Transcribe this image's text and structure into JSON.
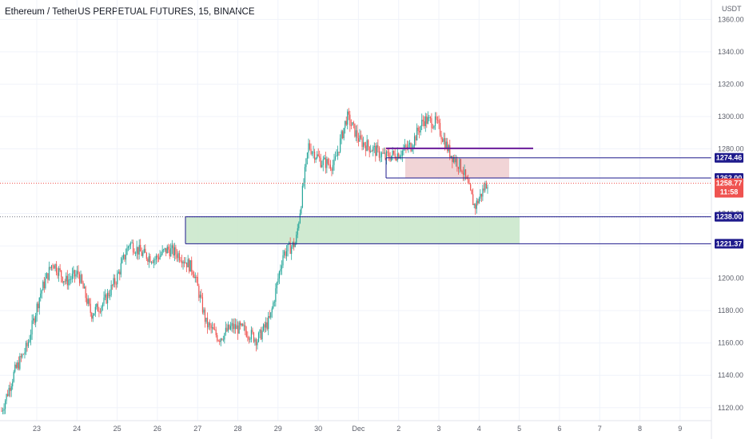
{
  "header": {
    "title": "Ethereum / TetherUS PERPETUAL FUTURES, 15, BINANCE"
  },
  "axis": {
    "currency": "USDT"
  },
  "chart_data": {
    "type": "candlestick",
    "title": "Ethereum / TetherUS PERPETUAL FUTURES, 15, BINANCE",
    "yaxis_label": "USDT",
    "ylim": [
      1112,
      1372
    ],
    "grid": true,
    "x_ticks": [
      "23",
      "24",
      "25",
      "26",
      "27",
      "28",
      "29",
      "30",
      "Dec",
      "2",
      "3",
      "4",
      "5",
      "6",
      "7",
      "8",
      "9"
    ],
    "y_ticks": [
      1120,
      1140,
      1160,
      1180,
      1200,
      1220,
      1240,
      1260,
      1280,
      1300,
      1320,
      1340,
      1360
    ],
    "price_path": [
      [
        "23",
        1118
      ],
      [
        "23.3",
        1142
      ],
      [
        "23.6",
        1158
      ],
      [
        "24",
        1190
      ],
      [
        "24.3",
        1210
      ],
      [
        "24.6",
        1198
      ],
      [
        "25",
        1203
      ],
      [
        "25.3",
        1178
      ],
      [
        "25.6",
        1185
      ],
      [
        "26",
        1200
      ],
      [
        "26.3",
        1222
      ],
      [
        "26.6",
        1215
      ],
      [
        "27",
        1212
      ],
      [
        "27.4",
        1218
      ],
      [
        "27.8",
        1214
      ],
      [
        "28",
        1205
      ],
      [
        "28.15",
        1172
      ],
      [
        "28.3",
        1163
      ],
      [
        "28.6",
        1170
      ],
      [
        "29",
        1168
      ],
      [
        "29.2",
        1162
      ],
      [
        "29.5",
        1175
      ],
      [
        "29.8",
        1215
      ],
      [
        "30",
        1222
      ],
      [
        "30.15",
        1282
      ],
      [
        "30.5",
        1272
      ],
      [
        "30.8",
        1270
      ],
      [
        "Dec",
        1300
      ],
      [
        "Dec.3",
        1285
      ],
      [
        "Dec.6",
        1280
      ],
      [
        "1.8",
        1275
      ],
      [
        "2",
        1277
      ],
      [
        "2.5",
        1282
      ],
      [
        "2.8",
        1298
      ],
      [
        "3.1",
        1296
      ],
      [
        "3.4",
        1278
      ],
      [
        "3.7",
        1268
      ],
      [
        "4",
        1244
      ],
      [
        "4.2",
        1260
      ]
    ],
    "last_price": "1258.77",
    "countdown": "11:58",
    "levels": [
      {
        "label": "1274.46",
        "value": 1274.46
      },
      {
        "label": "1262.00",
        "value": 1262.0
      },
      {
        "label": "1238.00",
        "value": 1238.0
      },
      {
        "label": "1221.37",
        "value": 1221.37
      }
    ],
    "zones": [
      {
        "kind": "demand",
        "from": 1221.37,
        "to": 1238.0
      },
      {
        "kind": "supply",
        "from": 1262.0,
        "to": 1274.46
      }
    ],
    "colors": {
      "up": "#26a69a",
      "down": "#ef5350",
      "level": "#1e1a8c",
      "demand_zone": "#c8e6c9",
      "supply_zone": "#f0cfd2",
      "badge": "#1e1a8c",
      "last_price_badge": "#ef5350",
      "resistance_line": "#6a1b9a"
    }
  }
}
